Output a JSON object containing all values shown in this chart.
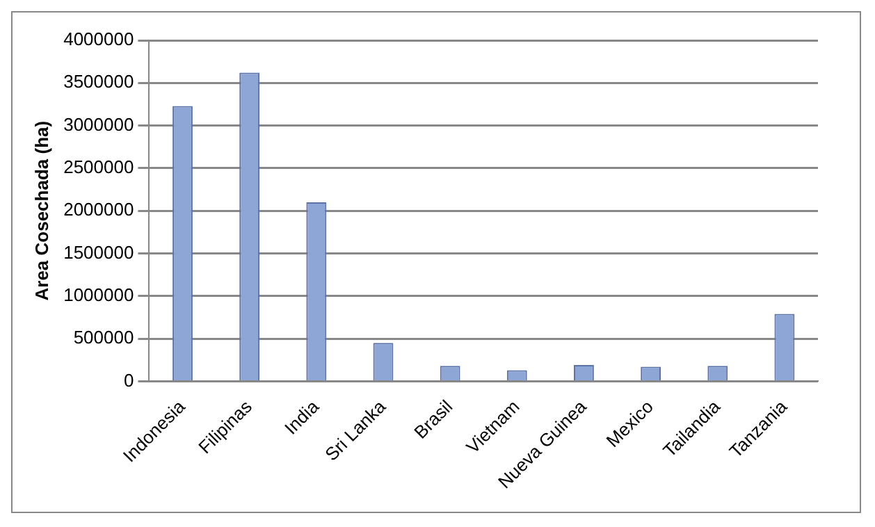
{
  "chart_data": {
    "type": "bar",
    "ylabel": "Area Cosechada (ha)",
    "categories": [
      "Indonesia",
      "Filipinas",
      "India",
      "Sri Lanka",
      "Brasil",
      "Vietnam",
      "Nueva Guinea",
      "Mexico",
      "Tailandia",
      "Tanzania"
    ],
    "values": [
      3230000,
      3620000,
      2100000,
      450000,
      180000,
      130000,
      190000,
      170000,
      180000,
      790000
    ],
    "color": "#8ea6d6",
    "ylim": [
      0,
      4000000
    ],
    "yticks": [
      0,
      500000,
      1000000,
      1500000,
      2000000,
      2500000,
      3000000,
      3500000,
      4000000
    ],
    "grid": "y",
    "legend": false
  }
}
